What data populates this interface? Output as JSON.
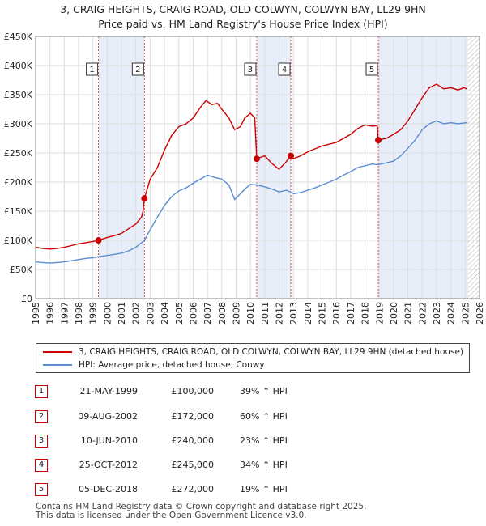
{
  "title_line1": "3, CRAIG HEIGHTS, CRAIG ROAD, OLD COLWYN, COLWYN BAY, LL29 9HN",
  "title_line2": "Price paid vs. HM Land Registry's House Price Index (HPI)",
  "colors": {
    "property": "#cc0000",
    "hpi": "#5b8ed0",
    "shade": "#e8eef9",
    "future_hatch": "#aaaaaa"
  },
  "legend": {
    "property_label": "3, CRAIG HEIGHTS, CRAIG ROAD, OLD COLWYN, COLWYN BAY, LL29 9HN (detached house)",
    "hpi_label": "HPI: Average price, detached house, Conwy"
  },
  "sales": [
    {
      "num": "1",
      "date": "21-MAY-1999",
      "price": "£100,000",
      "hpi": "39% ↑ HPI"
    },
    {
      "num": "2",
      "date": "09-AUG-2002",
      "price": "£172,000",
      "hpi": "60% ↑ HPI"
    },
    {
      "num": "3",
      "date": "10-JUN-2010",
      "price": "£240,000",
      "hpi": "23% ↑ HPI"
    },
    {
      "num": "4",
      "date": "25-OCT-2012",
      "price": "£245,000",
      "hpi": "34% ↑ HPI"
    },
    {
      "num": "5",
      "date": "05-DEC-2018",
      "price": "£272,000",
      "hpi": "19% ↑ HPI"
    }
  ],
  "footer_line1": "Contains HM Land Registry data © Crown copyright and database right 2025.",
  "footer_line2": "This data is licensed under the Open Government Licence v3.0.",
  "chart_data": {
    "type": "line",
    "xlim": [
      1995,
      2026
    ],
    "ylim": [
      0,
      450000
    ],
    "x_ticks": [
      "1995",
      "1996",
      "1997",
      "1998",
      "1999",
      "2000",
      "2001",
      "2002",
      "2003",
      "2004",
      "2005",
      "2006",
      "2007",
      "2008",
      "2009",
      "2010",
      "2011",
      "2012",
      "2013",
      "2014",
      "2015",
      "2016",
      "2017",
      "2018",
      "2019",
      "2020",
      "2021",
      "2022",
      "2023",
      "2024",
      "2025",
      "2026"
    ],
    "y_ticks": [
      {
        "value": 0,
        "label": "£0"
      },
      {
        "value": 50000,
        "label": "£50K"
      },
      {
        "value": 100000,
        "label": "£100K"
      },
      {
        "value": 150000,
        "label": "£150K"
      },
      {
        "value": 200000,
        "label": "£200K"
      },
      {
        "value": 250000,
        "label": "£250K"
      },
      {
        "value": 300000,
        "label": "£300K"
      },
      {
        "value": 350000,
        "label": "£350K"
      },
      {
        "value": 400000,
        "label": "£400K"
      },
      {
        "value": 450000,
        "label": "£450K"
      }
    ],
    "grid": true,
    "shaded_periods": [
      [
        1999.39,
        2002.6
      ],
      [
        2010.44,
        2012.82
      ],
      [
        2018.93,
        2025.2
      ]
    ],
    "future_from": 2025.2,
    "markers": [
      {
        "label": "1",
        "x": 1999.39,
        "y": 100000
      },
      {
        "label": "2",
        "x": 2002.6,
        "y": 172000
      },
      {
        "label": "3",
        "x": 2010.44,
        "y": 240000
      },
      {
        "label": "4",
        "x": 2012.82,
        "y": 245000
      },
      {
        "label": "5",
        "x": 2018.93,
        "y": 272000
      }
    ],
    "series": [
      {
        "name": "3, CRAIG HEIGHTS, CRAIG ROAD, OLD COLWYN, COLWYN BAY, LL29 9HN (detached house)",
        "color": "#cc0000",
        "points": [
          [
            1995,
            88000
          ],
          [
            1995.5,
            86000
          ],
          [
            1996,
            85000
          ],
          [
            1996.5,
            86000
          ],
          [
            1997,
            88000
          ],
          [
            1997.5,
            91000
          ],
          [
            1998,
            94000
          ],
          [
            1998.5,
            96000
          ],
          [
            1999,
            98000
          ],
          [
            1999.39,
            100000
          ],
          [
            2000,
            105000
          ],
          [
            2000.5,
            108000
          ],
          [
            2001,
            112000
          ],
          [
            2001.5,
            120000
          ],
          [
            2002,
            128000
          ],
          [
            2002.4,
            140000
          ],
          [
            2002.5,
            150000
          ],
          [
            2002.6,
            172000
          ],
          [
            2003,
            205000
          ],
          [
            2003.5,
            225000
          ],
          [
            2004,
            255000
          ],
          [
            2004.5,
            280000
          ],
          [
            2005,
            295000
          ],
          [
            2005.5,
            300000
          ],
          [
            2006,
            310000
          ],
          [
            2006.5,
            328000
          ],
          [
            2006.9,
            340000
          ],
          [
            2007.3,
            333000
          ],
          [
            2007.7,
            335000
          ],
          [
            2008,
            325000
          ],
          [
            2008.5,
            310000
          ],
          [
            2008.9,
            290000
          ],
          [
            2009.3,
            295000
          ],
          [
            2009.6,
            310000
          ],
          [
            2010,
            318000
          ],
          [
            2010.3,
            310000
          ],
          [
            2010.44,
            240000
          ],
          [
            2011,
            245000
          ],
          [
            2011.5,
            232000
          ],
          [
            2012,
            222000
          ],
          [
            2012.5,
            235000
          ],
          [
            2012.82,
            245000
          ],
          [
            2013,
            240000
          ],
          [
            2013.5,
            245000
          ],
          [
            2014,
            252000
          ],
          [
            2014.5,
            257000
          ],
          [
            2015,
            262000
          ],
          [
            2015.5,
            265000
          ],
          [
            2016,
            268000
          ],
          [
            2016.5,
            275000
          ],
          [
            2017,
            282000
          ],
          [
            2017.5,
            292000
          ],
          [
            2018,
            298000
          ],
          [
            2018.5,
            296000
          ],
          [
            2018.85,
            297000
          ],
          [
            2018.93,
            272000
          ],
          [
            2019.5,
            275000
          ],
          [
            2020,
            282000
          ],
          [
            2020.5,
            290000
          ],
          [
            2021,
            305000
          ],
          [
            2021.5,
            325000
          ],
          [
            2022,
            345000
          ],
          [
            2022.5,
            362000
          ],
          [
            2023,
            368000
          ],
          [
            2023.5,
            360000
          ],
          [
            2024,
            362000
          ],
          [
            2024.5,
            358000
          ],
          [
            2024.9,
            362000
          ],
          [
            2025.1,
            360000
          ]
        ]
      },
      {
        "name": "HPI: Average price, detached house, Conwy",
        "color": "#5b8ed0",
        "points": [
          [
            1995,
            63000
          ],
          [
            1995.5,
            62000
          ],
          [
            1996,
            61000
          ],
          [
            1996.5,
            62000
          ],
          [
            1997,
            63000
          ],
          [
            1997.5,
            65000
          ],
          [
            1998,
            67000
          ],
          [
            1998.5,
            69000
          ],
          [
            1999,
            70000
          ],
          [
            1999.39,
            72000
          ],
          [
            2000,
            74000
          ],
          [
            2000.5,
            76000
          ],
          [
            2001,
            78000
          ],
          [
            2001.5,
            82000
          ],
          [
            2002,
            88000
          ],
          [
            2002.6,
            100000
          ],
          [
            2003,
            118000
          ],
          [
            2003.5,
            140000
          ],
          [
            2004,
            160000
          ],
          [
            2004.5,
            175000
          ],
          [
            2005,
            185000
          ],
          [
            2005.5,
            190000
          ],
          [
            2006,
            198000
          ],
          [
            2006.5,
            205000
          ],
          [
            2007,
            212000
          ],
          [
            2007.5,
            208000
          ],
          [
            2008,
            205000
          ],
          [
            2008.5,
            195000
          ],
          [
            2008.9,
            170000
          ],
          [
            2009.3,
            180000
          ],
          [
            2009.7,
            190000
          ],
          [
            2010,
            196000
          ],
          [
            2010.44,
            195000
          ],
          [
            2011,
            192000
          ],
          [
            2011.5,
            188000
          ],
          [
            2012,
            183000
          ],
          [
            2012.5,
            186000
          ],
          [
            2012.82,
            183000
          ],
          [
            2013,
            180000
          ],
          [
            2013.5,
            182000
          ],
          [
            2014,
            186000
          ],
          [
            2014.5,
            190000
          ],
          [
            2015,
            195000
          ],
          [
            2015.5,
            200000
          ],
          [
            2016,
            205000
          ],
          [
            2016.5,
            212000
          ],
          [
            2017,
            218000
          ],
          [
            2017.5,
            225000
          ],
          [
            2018,
            228000
          ],
          [
            2018.5,
            231000
          ],
          [
            2018.93,
            230000
          ],
          [
            2019.5,
            233000
          ],
          [
            2020,
            236000
          ],
          [
            2020.5,
            245000
          ],
          [
            2021,
            258000
          ],
          [
            2021.5,
            272000
          ],
          [
            2022,
            290000
          ],
          [
            2022.5,
            300000
          ],
          [
            2023,
            305000
          ],
          [
            2023.5,
            300000
          ],
          [
            2024,
            302000
          ],
          [
            2024.5,
            300000
          ],
          [
            2025.1,
            302000
          ]
        ]
      }
    ]
  }
}
